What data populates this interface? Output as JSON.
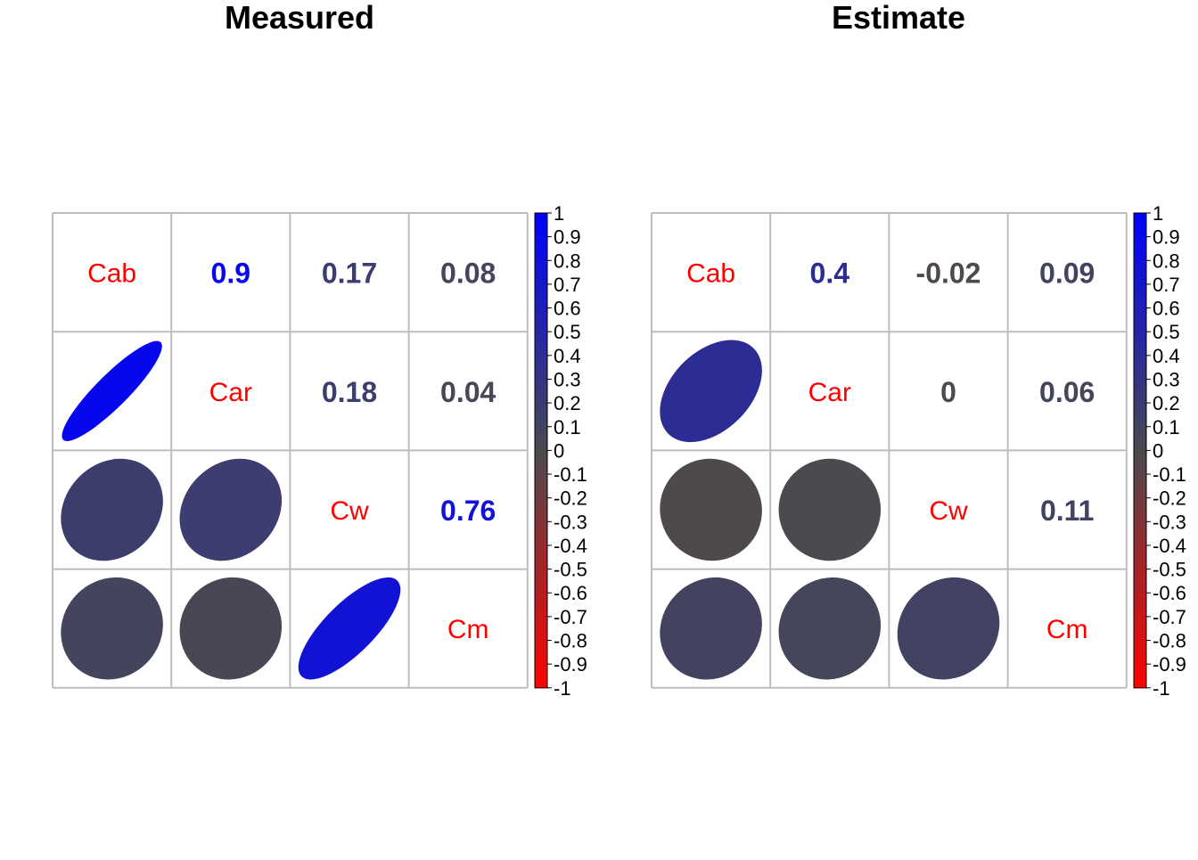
{
  "chart_data": [
    {
      "type": "heatmap",
      "subtype": "correlation-matrix",
      "title": "Measured",
      "variables": [
        "Cab",
        "Car",
        "Cw",
        "Cm"
      ],
      "matrix": [
        [
          1,
          0.9,
          0.17,
          0.08
        ],
        [
          0.9,
          1,
          0.18,
          0.04
        ],
        [
          0.17,
          0.18,
          1,
          0.76
        ],
        [
          0.08,
          0.04,
          0.76,
          1
        ]
      ],
      "upper_labels": [
        [
          "",
          "0.9",
          "0.17",
          "0.08"
        ],
        [
          "",
          "",
          "0.18",
          "0.04"
        ],
        [
          "",
          "",
          "",
          "0.76"
        ],
        [
          "",
          "",
          "",
          ""
        ]
      ],
      "lower_method": "ellipse",
      "upper_method": "number",
      "diagonal": "variable names",
      "colorbar": {
        "range": [
          -1,
          1
        ],
        "ticks": [
          "1",
          "0.9",
          "0.8",
          "0.7",
          "0.6",
          "0.5",
          "0.4",
          "0.3",
          "0.2",
          "0.1",
          "0",
          "-0.1",
          "-0.2",
          "-0.3",
          "-0.4",
          "-0.5",
          "-0.6",
          "-0.7",
          "-0.8",
          "-0.9",
          "-1"
        ],
        "colors": {
          "negative": "#ff0000",
          "zero": "#4a4a4f",
          "positive": "#0000ff"
        }
      },
      "grid": true
    },
    {
      "type": "heatmap",
      "subtype": "correlation-matrix",
      "title": "Estimate",
      "variables": [
        "Cab",
        "Car",
        "Cw",
        "Cm"
      ],
      "matrix": [
        [
          1,
          0.4,
          -0.02,
          0.09
        ],
        [
          0.4,
          1,
          0,
          0.06
        ],
        [
          -0.02,
          0,
          1,
          0.11
        ],
        [
          0.09,
          0.06,
          0.11,
          1
        ]
      ],
      "upper_labels": [
        [
          "",
          "0.4",
          "-0.02",
          "0.09"
        ],
        [
          "",
          "",
          "0",
          "0.06"
        ],
        [
          "",
          "",
          "",
          "0.11"
        ],
        [
          "",
          "",
          "",
          ""
        ]
      ],
      "lower_method": "ellipse",
      "upper_method": "number",
      "diagonal": "variable names",
      "colorbar": {
        "range": [
          -1,
          1
        ],
        "ticks": [
          "1",
          "0.9",
          "0.8",
          "0.7",
          "0.6",
          "0.5",
          "0.4",
          "0.3",
          "0.2",
          "0.1",
          "0",
          "-0.1",
          "-0.2",
          "-0.3",
          "-0.4",
          "-0.5",
          "-0.6",
          "-0.7",
          "-0.8",
          "-0.9",
          "-1"
        ],
        "colors": {
          "negative": "#ff0000",
          "zero": "#4a4a4f",
          "positive": "#0000ff"
        }
      },
      "grid": true
    }
  ],
  "colors": {
    "diagonal_label": "#ff0000",
    "grid_line": "#bebebe",
    "title": "#000000"
  }
}
